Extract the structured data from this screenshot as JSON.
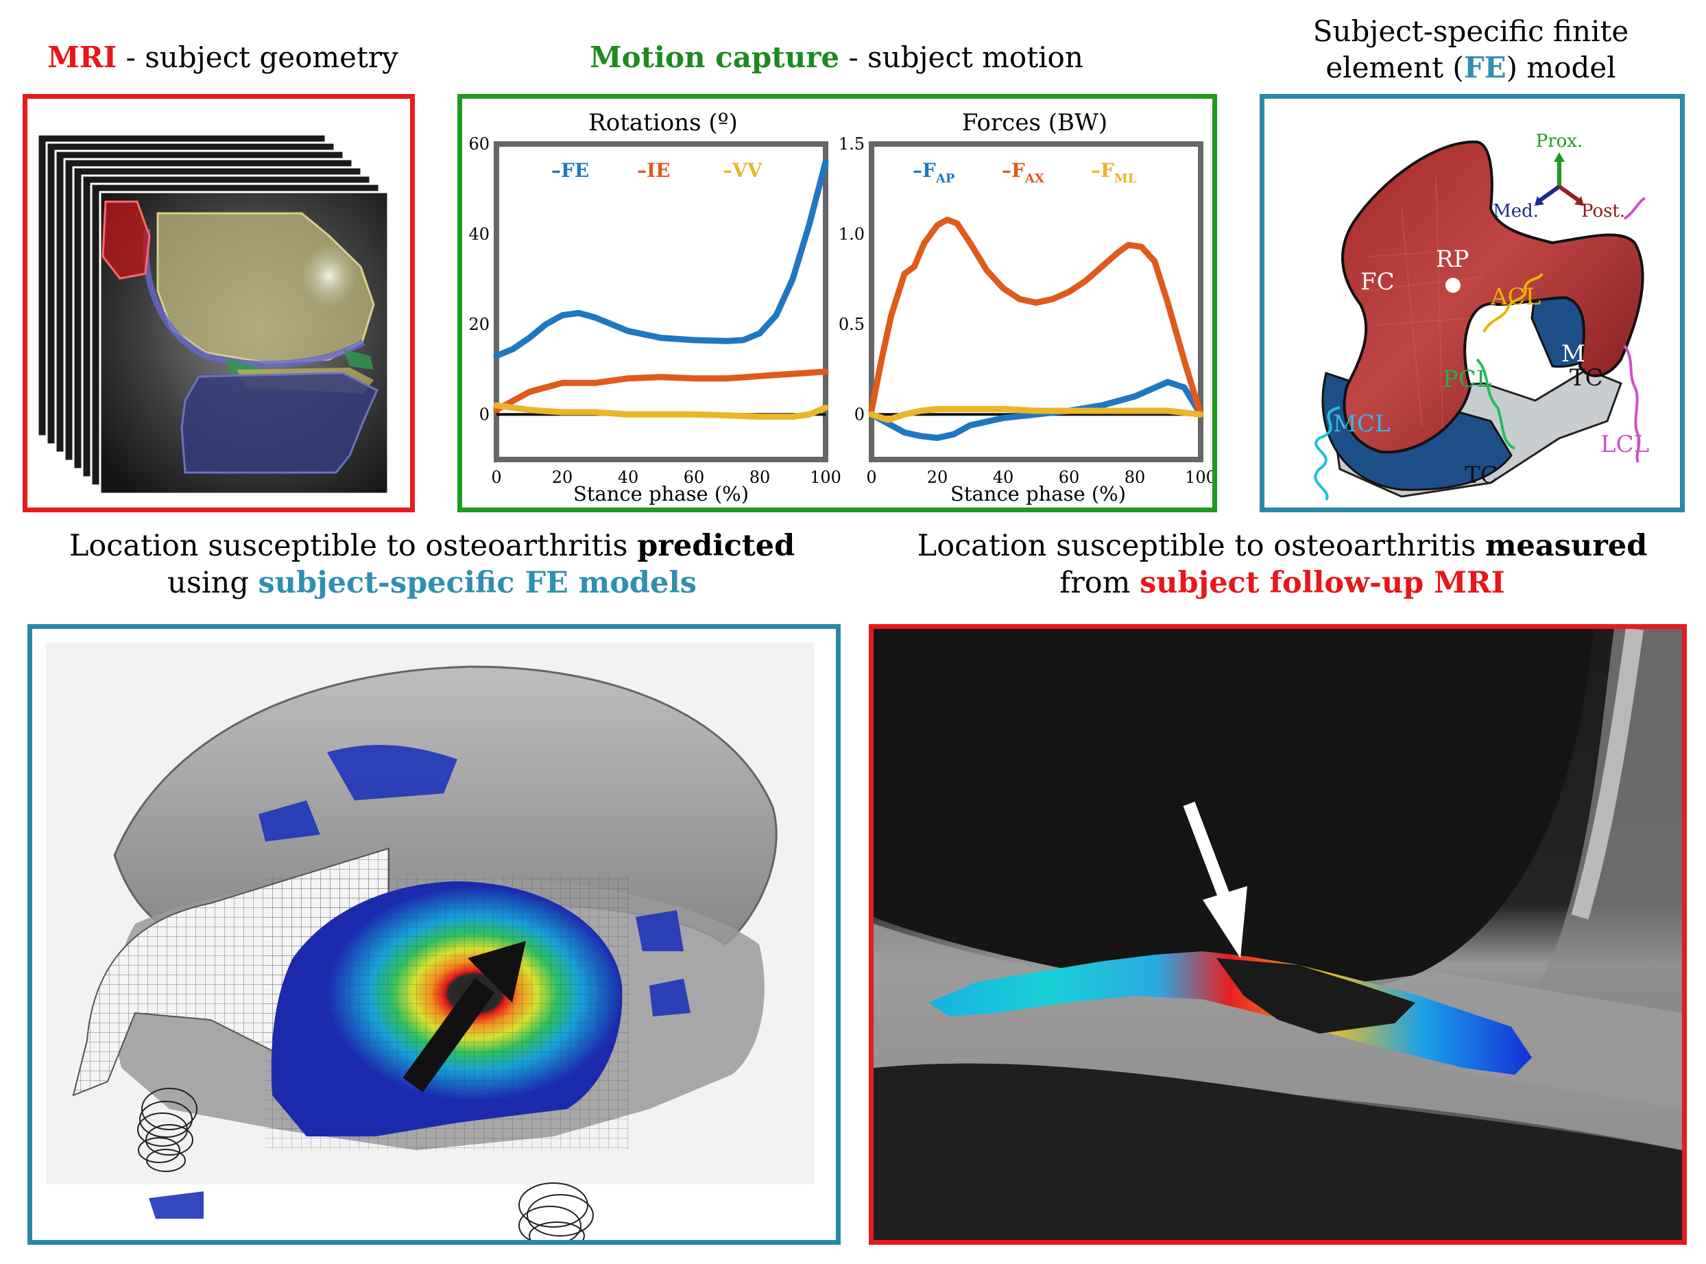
{
  "titles": {
    "mri": {
      "highlight": "MRI",
      "rest": " - subject geometry"
    },
    "motion": {
      "highlight": "Motion capture",
      "rest": " - subject motion"
    },
    "fe_line1": "Subject-specific finite",
    "fe_line2_pre": "element (",
    "fe_line2_hl": "FE",
    "fe_line2_post": ") model",
    "predicted_l1_pre": "Location susceptible to osteoarthritis ",
    "predicted_l1_bold": "predicted",
    "predicted_l2_pre": "using ",
    "predicted_l2_hl": "subject-specific FE models",
    "measured_l1_pre": "Location susceptible to osteoarthritis ",
    "measured_l1_bold": "measured",
    "measured_l2_pre": "from ",
    "measured_l2_hl": "subject follow-up MRI"
  },
  "fe_labels": {
    "prox": "Prox.",
    "med": "Med.",
    "post": "Post.",
    "fc": "FC",
    "rp": "RP",
    "acl": "ACL",
    "pcl": "PCL",
    "mcl": "MCL",
    "m": "M",
    "tc1": "TC",
    "tc2": "TC",
    "lcl": "LCL"
  },
  "colors": {
    "fe": "#1f77c2",
    "ie": "#e05a1c",
    "vv": "#eab52a",
    "red": "#e51b1f",
    "green": "#1e9a1e",
    "teal": "#2889a6"
  },
  "chart_data": [
    {
      "type": "line",
      "title": "Rotations (º)",
      "xlabel": "Stance phase (%)",
      "ylabel": "",
      "xlim": [
        0,
        100
      ],
      "ylim": [
        -10,
        60
      ],
      "xticks": [
        0,
        20,
        40,
        60,
        80,
        100
      ],
      "yticks": [
        0,
        20,
        40,
        60
      ],
      "legend_position": "top",
      "series": [
        {
          "name": "FE",
          "color": "#1f77c2",
          "x": [
            0,
            5,
            10,
            15,
            20,
            25,
            30,
            40,
            50,
            60,
            70,
            75,
            80,
            85,
            90,
            95,
            100
          ],
          "y": [
            13,
            14.5,
            17,
            20,
            22,
            22.5,
            21.5,
            18.5,
            17,
            16.5,
            16.3,
            16.5,
            18,
            22,
            30,
            42,
            56
          ]
        },
        {
          "name": "IE",
          "color": "#e05a1c",
          "x": [
            0,
            5,
            10,
            15,
            20,
            30,
            40,
            50,
            60,
            70,
            80,
            90,
            100
          ],
          "y": [
            1,
            3,
            5,
            6,
            7,
            7,
            8,
            8.3,
            8,
            8,
            8.5,
            9,
            9.5
          ]
        },
        {
          "name": "VV",
          "color": "#eab52a",
          "x": [
            0,
            5,
            10,
            20,
            30,
            40,
            50,
            60,
            70,
            80,
            90,
            95,
            100
          ],
          "y": [
            2,
            1.5,
            1,
            0.5,
            0.5,
            0,
            0,
            0,
            -0.2,
            -0.5,
            -0.5,
            0,
            1.5
          ]
        }
      ]
    },
    {
      "type": "line",
      "title": "Forces (BW)",
      "xlabel": "Stance phase (%)",
      "ylabel": "",
      "xlim": [
        0,
        100
      ],
      "ylim": [
        -0.25,
        1.5
      ],
      "xticks": [
        0,
        20,
        40,
        60,
        80,
        100
      ],
      "ytick_labels": [
        "0",
        "0.5",
        "1.0",
        "1.5"
      ],
      "yticks": [
        0,
        0.5,
        1.0,
        1.5
      ],
      "legend_position": "top",
      "series": [
        {
          "name": "F",
          "sub": "AP",
          "color": "#1f77c2",
          "x": [
            0,
            5,
            10,
            15,
            20,
            25,
            30,
            40,
            50,
            60,
            70,
            80,
            85,
            90,
            95,
            100
          ],
          "y": [
            0,
            -0.05,
            -0.1,
            -0.12,
            -0.13,
            -0.11,
            -0.06,
            -0.02,
            0,
            0.02,
            0.05,
            0.1,
            0.14,
            0.18,
            0.15,
            0
          ]
        },
        {
          "name": "F",
          "sub": "AX",
          "color": "#e05a1c",
          "x": [
            0,
            3,
            6,
            10,
            13,
            16,
            20,
            23,
            26,
            30,
            35,
            40,
            45,
            50,
            55,
            60,
            65,
            70,
            75,
            78,
            82,
            86,
            90,
            95,
            100
          ],
          "y": [
            0.02,
            0.3,
            0.55,
            0.78,
            0.82,
            0.95,
            1.05,
            1.08,
            1.06,
            0.95,
            0.8,
            0.7,
            0.64,
            0.62,
            0.64,
            0.68,
            0.74,
            0.82,
            0.9,
            0.94,
            0.93,
            0.85,
            0.62,
            0.3,
            0
          ]
        },
        {
          "name": "F",
          "sub": "ML",
          "color": "#eab52a",
          "x": [
            0,
            5,
            10,
            15,
            20,
            30,
            40,
            50,
            60,
            70,
            80,
            90,
            95,
            100
          ],
          "y": [
            0,
            -0.03,
            0,
            0.02,
            0.03,
            0.03,
            0.03,
            0.02,
            0.02,
            0.02,
            0.02,
            0.02,
            0.01,
            0
          ]
        }
      ]
    }
  ]
}
